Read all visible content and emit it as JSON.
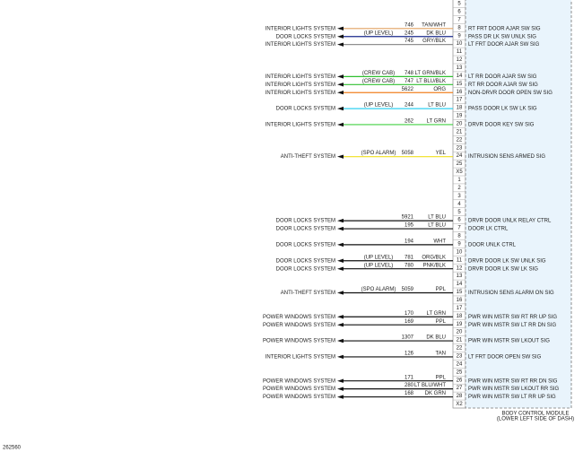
{
  "connectors": [
    {
      "rows": [
        {
          "pin": "5"
        },
        {
          "pin": "6"
        },
        {
          "pin": "7"
        },
        {
          "pin": "8",
          "system": "INTERIOR LIGHTS SYSTEM",
          "circuit": "746",
          "wire_color": "TAN/WHT",
          "signal": "RT FRT DOOR AJAR SW SIG",
          "stroke": "#e0a060"
        },
        {
          "pin": "9",
          "system": "DOOR LOCKS SYSTEM",
          "note": "(UP LEVEL)",
          "circuit": "245",
          "wire_color": "DK BLU",
          "signal": "PASS DR LK SW UNLK SIG",
          "stroke": "#1a2a8c"
        },
        {
          "pin": "10",
          "system": "INTERIOR LIGHTS SYSTEM",
          "circuit": "745",
          "wire_color": "GRY/BLK",
          "signal": "LT FRT DOOR AJAR SW SIG",
          "stroke": "#909090"
        },
        {
          "pin": "11"
        },
        {
          "pin": "12"
        },
        {
          "pin": "13"
        },
        {
          "pin": "14",
          "system": "INTERIOR LIGHTS SYSTEM",
          "note": "(CREW CAB)",
          "circuit": "748",
          "wire_color": "LT GRN/BLK",
          "signal": "LT RR DOOR AJAR SW SIG",
          "stroke": "#30c030"
        },
        {
          "pin": "15",
          "system": "INTERIOR LIGHTS SYSTEM",
          "note": "(CREW CAB)",
          "circuit": "747",
          "wire_color": "LT BLU/BLK",
          "signal": "RT RR DOOR AJAR SW SIG",
          "stroke": "#30c030"
        },
        {
          "pin": "16",
          "system": "INTERIOR LIGHTS SYSTEM",
          "circuit": "5622",
          "wire_color": "ORG",
          "signal": "NON-DRVR DOOR OPEN SW SIG",
          "stroke": "#f08020"
        },
        {
          "pin": "17"
        },
        {
          "pin": "18",
          "system": "DOOR LOCKS SYSTEM",
          "note": "(UP LEVEL)",
          "circuit": "244",
          "wire_color": "LT BLU",
          "signal": "PASS DOOR LK SW LK SIG",
          "stroke": "#30d0f0"
        },
        {
          "pin": "19"
        },
        {
          "pin": "20",
          "system": "INTERIOR LIGHTS SYSTEM",
          "circuit": "262",
          "wire_color": "LT GRN",
          "signal": "DRVR DOOR KEY SW SIG",
          "stroke": "#40d040"
        },
        {
          "pin": "21"
        },
        {
          "pin": "22"
        },
        {
          "pin": "23"
        },
        {
          "pin": "24",
          "system": "ANTI-THEFT SYSTEM",
          "note": "(SPO ALARM)",
          "circuit": "5058",
          "wire_color": "YEL",
          "signal": "INTRUSION SENS ARMED SIG",
          "stroke": "#f0e020"
        },
        {
          "pin": "25"
        },
        {
          "pin": "X5"
        }
      ]
    },
    {
      "rows": [
        {
          "pin": "1"
        },
        {
          "pin": "2"
        },
        {
          "pin": "3"
        },
        {
          "pin": "4"
        },
        {
          "pin": "5"
        },
        {
          "pin": "6",
          "system": "DOOR LOCKS SYSTEM",
          "circuit": "5921",
          "wire_color": "LT BLU",
          "signal": "DRVR DOOR UNLK RELAY CTRL",
          "stroke": "#111"
        },
        {
          "pin": "7",
          "system": "DOOR LOCKS SYSTEM",
          "circuit": "195",
          "wire_color": "LT BLU",
          "signal": "DOOR LK CTRL",
          "stroke": "#111"
        },
        {
          "pin": "8"
        },
        {
          "pin": "9",
          "system": "DOOR LOCKS SYSTEM",
          "circuit": "194",
          "wire_color": "WHT",
          "signal": "DOOR UNLK CTRL",
          "stroke": "#111"
        },
        {
          "pin": "10"
        },
        {
          "pin": "11",
          "system": "DOOR LOCKS SYSTEM",
          "note": "(UP LEVEL)",
          "circuit": "781",
          "wire_color": "ORG/BLK",
          "signal": "DRVR DOOR LK SW UNLK SIG",
          "stroke": "#111"
        },
        {
          "pin": "12",
          "system": "DOOR LOCKS SYSTEM",
          "note": "(UP LEVEL)",
          "circuit": "780",
          "wire_color": "PNK/BLK",
          "signal": "DRVR DOOR LK SW LK SIG",
          "stroke": "#111"
        },
        {
          "pin": "13"
        },
        {
          "pin": "14"
        },
        {
          "pin": "15",
          "system": "ANTI-THEFT SYSTEM",
          "note": "(SPO ALARM)",
          "circuit": "5059",
          "wire_color": "PPL",
          "signal": "INTRUSION SENS ALARM ON SIG",
          "stroke": "#111"
        },
        {
          "pin": "16"
        },
        {
          "pin": "17"
        },
        {
          "pin": "18",
          "system": "POWER WINDOWS SYSTEM",
          "circuit": "170",
          "wire_color": "LT GRN",
          "signal": "PWR WIN MSTR SW RT RR UP SIG",
          "stroke": "#111"
        },
        {
          "pin": "19",
          "system": "POWER WINDOWS SYSTEM",
          "circuit": "169",
          "wire_color": "PPL",
          "signal": "PWR WIN MSTR SW LT RR DN SIG",
          "stroke": "#111"
        },
        {
          "pin": "20"
        },
        {
          "pin": "21",
          "system": "POWER WINDOWS SYSTEM",
          "circuit": "1307",
          "wire_color": "DK BLU",
          "signal": "PWR WIN MSTR SW LKOUT SIG",
          "stroke": "#111"
        },
        {
          "pin": "22"
        },
        {
          "pin": "23",
          "system": "INTERIOR LIGHTS SYSTEM",
          "circuit": "126",
          "wire_color": "TAN",
          "signal": "LT FRT DOOR OPEN SW SIG",
          "stroke": "#111"
        },
        {
          "pin": "24"
        },
        {
          "pin": "25"
        },
        {
          "pin": "26",
          "system": "POWER WINDOWS SYSTEM",
          "circuit": "171",
          "wire_color": "PPL",
          "signal": "PWR WIN MSTR SW RT RR DN SIG",
          "stroke": "#111"
        },
        {
          "pin": "27",
          "system": "POWER WINDOWS SYSTEM",
          "circuit": "280",
          "wire_color": "LT BLU/WHT",
          "signal": "PWR WIN MSTR SW LKOUT RR SIG",
          "stroke": "#111"
        },
        {
          "pin": "28",
          "system": "POWER WINDOWS SYSTEM",
          "circuit": "168",
          "wire_color": "DK GRN",
          "signal": "PWR WIN MSTR SW LT RR UP SIG",
          "stroke": "#111"
        },
        {
          "pin": "X2"
        }
      ]
    }
  ],
  "module": {
    "name": "BODY CONTROL MODULE",
    "location": "(LOWER LEFT SIDE OF DASH)"
  },
  "figure_id": "262560"
}
